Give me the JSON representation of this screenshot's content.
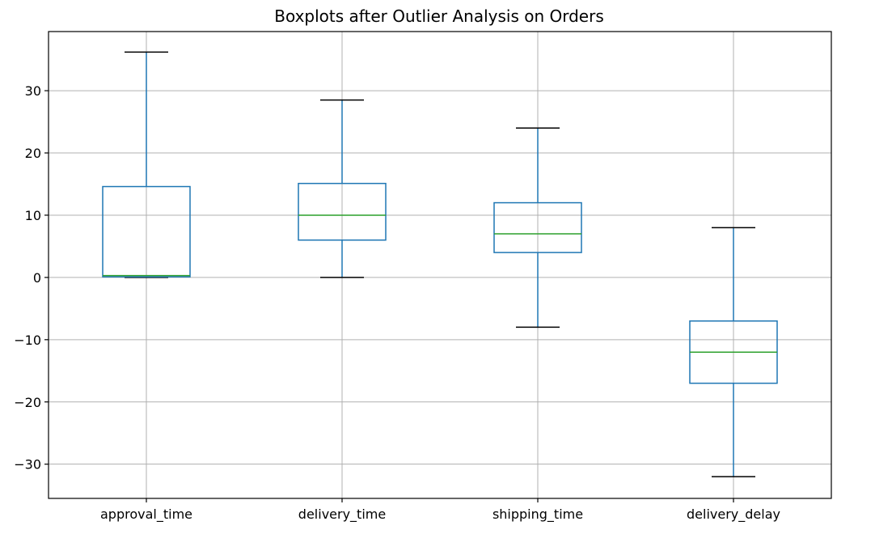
{
  "chart_data": {
    "type": "boxplot",
    "title": "Boxplots after Outlier Analysis on Orders",
    "xlabel": "",
    "ylabel": "",
    "ylim": [
      -35.5,
      39.5
    ],
    "yticks": [
      -30,
      -20,
      -10,
      0,
      10,
      20,
      30
    ],
    "ytick_labels": [
      "−30",
      "−20",
      "−10",
      "0",
      "10",
      "20",
      "30"
    ],
    "grid": true,
    "colors": {
      "box": "#1f77b4",
      "median": "#2ca02c",
      "caps": "#000000",
      "grid": "#b0b0b0"
    },
    "categories": [
      "approval_time",
      "delivery_time",
      "shipping_time",
      "delivery_delay"
    ],
    "boxes": [
      {
        "category": "approval_time",
        "whislo": 0.0,
        "q1": 0.1,
        "med": 0.3,
        "q3": 14.6,
        "whishi": 36.2
      },
      {
        "category": "delivery_time",
        "whislo": 0.0,
        "q1": 6.0,
        "med": 10.0,
        "q3": 15.1,
        "whishi": 28.5
      },
      {
        "category": "shipping_time",
        "whislo": -8.0,
        "q1": 4.0,
        "med": 7.0,
        "q3": 12.0,
        "whishi": 24.0
      },
      {
        "category": "delivery_delay",
        "whislo": -32.0,
        "q1": -17.0,
        "med": -12.0,
        "q3": -7.0,
        "whishi": 8.0
      }
    ]
  }
}
